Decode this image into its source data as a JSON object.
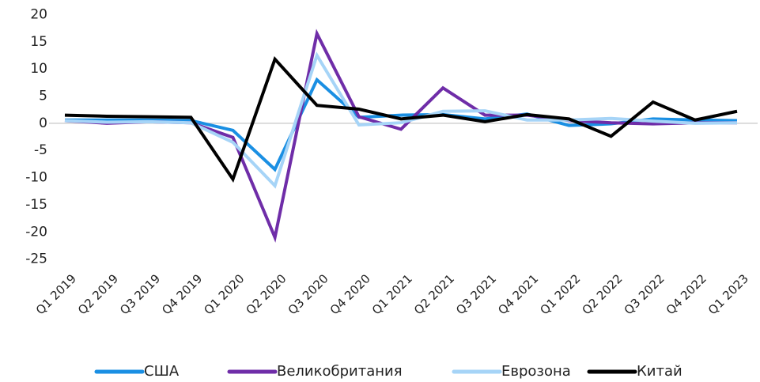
{
  "chart_data": {
    "type": "line",
    "categories": [
      "Q1 2019",
      "Q2 2019",
      "Q3 2019",
      "Q4 2019",
      "Q1 2020",
      "Q2 2020",
      "Q3 2020",
      "Q4 2020",
      "Q1 2021",
      "Q2 2021",
      "Q3 2021",
      "Q4 2021",
      "Q1 2022",
      "Q2 2022",
      "Q3 2022",
      "Q4 2022",
      "Q1 2023"
    ],
    "series": [
      {
        "name": "США",
        "color": "#1a8fe3",
        "values": [
          0.6,
          0.6,
          0.6,
          0.5,
          -1.3,
          -8.5,
          8,
          1.1,
          1.5,
          1.6,
          0.8,
          1.7,
          -0.4,
          -0.1,
          0.8,
          0.6,
          0.5
        ]
      },
      {
        "name": "Великобритания",
        "color": "#6f2da8",
        "values": [
          0.5,
          0.0,
          0.3,
          0.1,
          -2.6,
          -21,
          16.5,
          1.2,
          -1.1,
          6.5,
          1.5,
          1.5,
          0.5,
          0.1,
          -0.1,
          0.1,
          0.1
        ]
      },
      {
        "name": "Еврозона",
        "color": "#a6d4f7",
        "values": [
          0.5,
          0.2,
          0.3,
          0.1,
          -3.5,
          -11.5,
          12.5,
          -0.3,
          0.1,
          2.2,
          2.3,
          0.6,
          0.6,
          0.9,
          0.4,
          0,
          0.1
        ]
      },
      {
        "name": "Китай",
        "color": "#000000",
        "values": [
          1.5,
          1.3,
          1.2,
          1.1,
          -10.3,
          11.8,
          3.3,
          2.6,
          0.8,
          1.5,
          0.3,
          1.6,
          0.8,
          -2.4,
          3.9,
          0.6,
          2.2
        ]
      }
    ],
    "ylim": [
      -25,
      20
    ],
    "yticks": [
      -25,
      -20,
      -15,
      -10,
      -5,
      0,
      5,
      10,
      15,
      20
    ],
    "grid": false,
    "legend": "bottom"
  }
}
